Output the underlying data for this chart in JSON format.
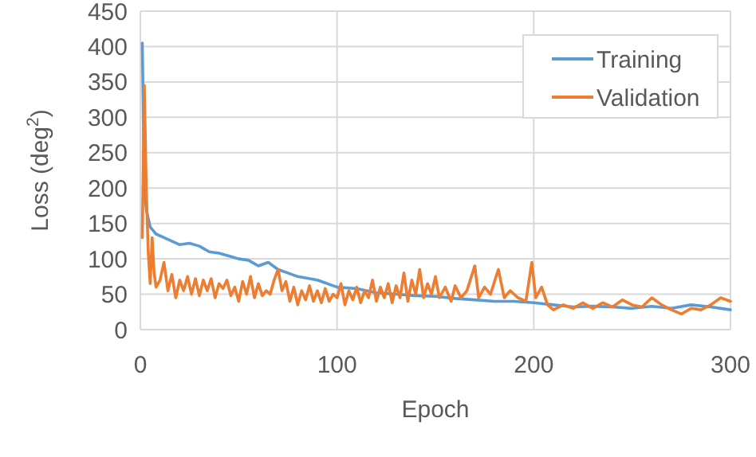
{
  "chart_data": {
    "type": "line",
    "xlabel": "Epoch",
    "ylabel": "Loss (deg$^{2}$)",
    "xlim": [
      0,
      300
    ],
    "ylim": [
      0,
      450
    ],
    "xticks": [
      0,
      100,
      200,
      300
    ],
    "yticks": [
      0,
      50,
      100,
      150,
      200,
      250,
      300,
      350,
      400,
      450
    ],
    "grid": true,
    "legend": "top right",
    "line_style": "solid",
    "marker": "none",
    "series": [
      {
        "name": "Training",
        "color": "#5b9bd5",
        "x": [
          1,
          2,
          3,
          5,
          8,
          12,
          20,
          25,
          30,
          35,
          40,
          45,
          50,
          55,
          60,
          65,
          70,
          75,
          80,
          90,
          100,
          110,
          120,
          130,
          140,
          150,
          160,
          170,
          180,
          190,
          200,
          210,
          220,
          230,
          240,
          250,
          260,
          270,
          280,
          290,
          300
        ],
        "values": [
          405,
          200,
          170,
          145,
          135,
          130,
          120,
          122,
          118,
          110,
          108,
          104,
          100,
          98,
          90,
          95,
          85,
          80,
          75,
          70,
          60,
          58,
          52,
          50,
          48,
          47,
          44,
          42,
          40,
          40,
          38,
          35,
          32,
          33,
          32,
          30,
          33,
          30,
          35,
          32,
          28
        ]
      },
      {
        "name": "Validation",
        "color": "#ed7d31",
        "x": [
          1,
          2,
          3,
          4,
          5,
          6,
          7,
          8,
          10,
          12,
          14,
          16,
          18,
          20,
          22,
          24,
          26,
          28,
          30,
          32,
          34,
          36,
          38,
          40,
          42,
          44,
          46,
          48,
          50,
          52,
          54,
          56,
          58,
          60,
          62,
          64,
          66,
          68,
          70,
          72,
          74,
          76,
          78,
          80,
          82,
          84,
          86,
          88,
          90,
          92,
          94,
          96,
          98,
          100,
          102,
          104,
          106,
          108,
          110,
          112,
          114,
          116,
          118,
          120,
          122,
          124,
          126,
          128,
          130,
          132,
          134,
          136,
          138,
          140,
          142,
          144,
          146,
          148,
          150,
          152,
          155,
          158,
          160,
          163,
          166,
          170,
          172,
          175,
          178,
          182,
          185,
          188,
          192,
          196,
          199,
          201,
          204,
          207,
          210,
          215,
          220,
          225,
          230,
          235,
          240,
          245,
          250,
          255,
          260,
          265,
          270,
          275,
          280,
          285,
          290,
          295,
          300
        ],
        "values": [
          130,
          345,
          200,
          110,
          65,
          130,
          80,
          60,
          70,
          95,
          55,
          78,
          45,
          70,
          55,
          75,
          50,
          72,
          48,
          70,
          55,
          72,
          45,
          65,
          58,
          70,
          48,
          60,
          40,
          68,
          50,
          75,
          45,
          65,
          48,
          55,
          50,
          70,
          85,
          55,
          68,
          40,
          60,
          35,
          55,
          42,
          62,
          40,
          55,
          38,
          58,
          40,
          50,
          45,
          65,
          35,
          55,
          42,
          60,
          38,
          55,
          45,
          70,
          40,
          60,
          45,
          65,
          38,
          62,
          45,
          80,
          40,
          70,
          50,
          85,
          45,
          65,
          50,
          75,
          45,
          60,
          40,
          62,
          45,
          55,
          90,
          45,
          60,
          50,
          85,
          45,
          55,
          45,
          40,
          95,
          45,
          60,
          35,
          28,
          35,
          30,
          38,
          30,
          38,
          32,
          42,
          35,
          32,
          45,
          35,
          28,
          22,
          30,
          28,
          35,
          45,
          40
        ]
      }
    ]
  }
}
